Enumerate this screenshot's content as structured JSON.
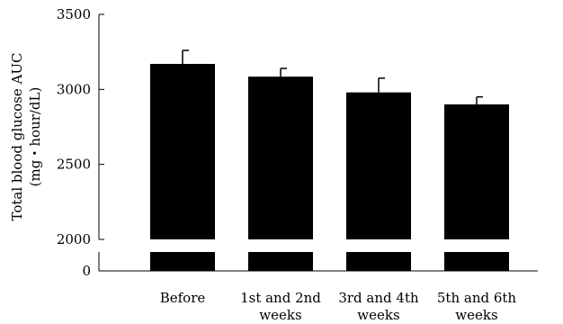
{
  "chart_data": {
    "type": "bar",
    "title": "",
    "ylabel": "Total blood glucose AUC",
    "ylabel_unit": "(mg・hour/dL)",
    "categories": [
      "Before",
      "1st and 2nd weeks",
      "3rd and 4th weeks",
      "5th and 6th weeks"
    ],
    "category_lines": [
      [
        "Before"
      ],
      [
        "1st and 2nd",
        "weeks"
      ],
      [
        "3rd and 4th",
        "weeks"
      ],
      [
        "5th and 6th",
        "weeks"
      ]
    ],
    "values": [
      3170,
      3085,
      2980,
      2900
    ],
    "errors": [
      90,
      55,
      95,
      50
    ],
    "yticks": [
      0,
      2000,
      2500,
      3000,
      3500
    ],
    "ytick_labels": [
      "0",
      "2000",
      "2500",
      "3000",
      "3500"
    ],
    "ylim": [
      2000,
      3500
    ],
    "axis_break": true,
    "grid": false,
    "bar_color": "#000000"
  }
}
